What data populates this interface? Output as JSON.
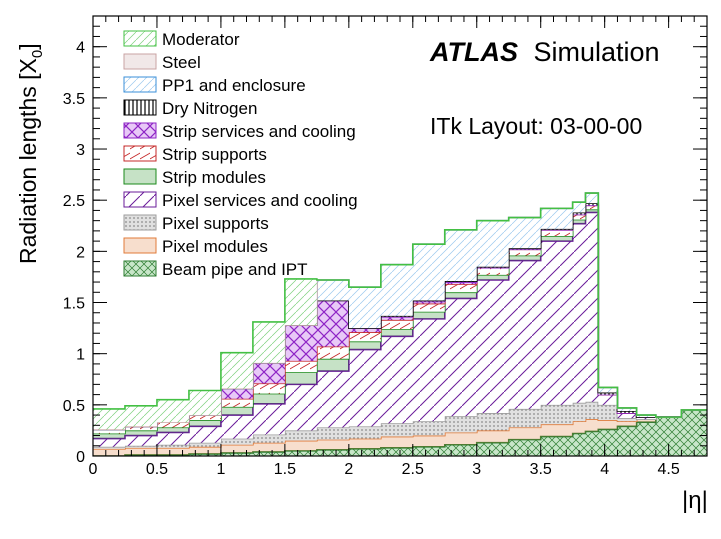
{
  "header": {
    "atlas_bold": "ATLAS",
    "atlas_rest": "Simulation",
    "layout_label": "ITk Layout: 03-00-00"
  },
  "chart_data": {
    "type": "area",
    "xlabel": "|η|",
    "ylabel": "Radiation lengths [X0]",
    "ylabel_main": "Radiation lengths [X",
    "ylabel_sub": "0",
    "ylabel_close": "]",
    "xlim": [
      0,
      4.8
    ],
    "ylim": [
      0,
      4.3
    ],
    "grid": false,
    "stacked": true,
    "legend_position": "top-left",
    "x_ticks": [
      0,
      0.5,
      1,
      1.5,
      2,
      2.5,
      3,
      3.5,
      4,
      4.5
    ],
    "x_tick_labels": [
      "0",
      "0.5",
      "1",
      "1.5",
      "2",
      "2.5",
      "3",
      "3.5",
      "4",
      "4.5"
    ],
    "y_ticks": [
      0,
      0.5,
      1,
      1.5,
      2,
      2.5,
      3,
      3.5,
      4
    ],
    "y_tick_labels": [
      "0",
      "0.5",
      "1",
      "1.5",
      "2",
      "2.5",
      "3",
      "3.5",
      "4"
    ],
    "x": [
      0,
      0.25,
      0.5,
      0.75,
      1.0,
      1.25,
      1.5,
      1.75,
      2.0,
      2.25,
      2.5,
      2.75,
      3.0,
      3.25,
      3.5,
      3.75,
      3.85,
      3.95,
      4.1,
      4.25,
      4.4,
      4.6,
      4.8
    ],
    "series": [
      {
        "name": "Beam pipe and IPT",
        "color": "#2e7d32",
        "pattern": "cross",
        "values": [
          0.0,
          0.01,
          0.01,
          0.02,
          0.03,
          0.04,
          0.05,
          0.06,
          0.07,
          0.08,
          0.09,
          0.11,
          0.13,
          0.16,
          0.19,
          0.22,
          0.24,
          0.26,
          0.29,
          0.33,
          0.38,
          0.45,
          0.53
        ]
      },
      {
        "name": "Pixel modules",
        "color": "#e07b39",
        "pattern": "solid-light",
        "values": [
          0.07,
          0.07,
          0.07,
          0.07,
          0.08,
          0.09,
          0.1,
          0.1,
          0.1,
          0.11,
          0.11,
          0.12,
          0.12,
          0.12,
          0.12,
          0.12,
          0.12,
          0.09,
          0.05,
          0.03,
          0.0,
          0.0,
          0.0
        ]
      },
      {
        "name": "Pixel supports",
        "color": "#9e9e9e",
        "pattern": "dots",
        "values": [
          0.02,
          0.02,
          0.03,
          0.04,
          0.06,
          0.08,
          0.1,
          0.12,
          0.12,
          0.13,
          0.14,
          0.16,
          0.17,
          0.18,
          0.19,
          0.18,
          0.17,
          0.15,
          0.03,
          0.0,
          0.0,
          0.0,
          0.0
        ]
      },
      {
        "name": "Pixel services and cooling",
        "color": "#6a1b9a",
        "pattern": "diag",
        "values": [
          0.08,
          0.1,
          0.12,
          0.16,
          0.23,
          0.3,
          0.45,
          0.55,
          0.75,
          0.85,
          1.0,
          1.15,
          1.3,
          1.45,
          1.6,
          1.75,
          1.85,
          0.1,
          0.05,
          0.02,
          0.0,
          0.0,
          0.0
        ]
      },
      {
        "name": "Strip modules",
        "color": "#1b8a1b",
        "pattern": "solid-light",
        "values": [
          0.05,
          0.05,
          0.05,
          0.06,
          0.08,
          0.1,
          0.12,
          0.12,
          0.08,
          0.07,
          0.07,
          0.06,
          0.05,
          0.05,
          0.05,
          0.04,
          0.03,
          0.0,
          0.0,
          0.0,
          0.0,
          0.0,
          0.0
        ]
      },
      {
        "name": "Strip supports",
        "color": "#c62828",
        "pattern": "diag-rev",
        "values": [
          0.04,
          0.04,
          0.05,
          0.05,
          0.08,
          0.1,
          0.11,
          0.12,
          0.09,
          0.09,
          0.08,
          0.08,
          0.07,
          0.06,
          0.06,
          0.05,
          0.04,
          0.0,
          0.0,
          0.0,
          0.0,
          0.0,
          0.0
        ]
      },
      {
        "name": "Strip services and cooling",
        "color": "#8e24c6",
        "pattern": "crosshatch",
        "values": [
          0.0,
          0.0,
          0.0,
          0.0,
          0.1,
          0.2,
          0.35,
          0.45,
          0.04,
          0.03,
          0.02,
          0.02,
          0.0,
          0.0,
          0.0,
          0.0,
          0.0,
          0.0,
          0.0,
          0.0,
          0.0,
          0.0,
          0.0
        ]
      },
      {
        "name": "Dry Nitrogen",
        "color": "#000000",
        "pattern": "vertical",
        "values": [
          0.0,
          0.0,
          0.0,
          0.0,
          0.0,
          0.0,
          0.0,
          0.0,
          0.0,
          0.01,
          0.01,
          0.01,
          0.01,
          0.01,
          0.01,
          0.02,
          0.02,
          0.02,
          0.02,
          0.0,
          0.0,
          0.0,
          0.0
        ]
      },
      {
        "name": "PP1 and enclosure",
        "color": "#3a8fd8",
        "pattern": "diag-light",
        "values": [
          0.0,
          0.0,
          0.0,
          0.0,
          0.0,
          0.0,
          0.0,
          0.2,
          0.4,
          0.5,
          0.55,
          0.5,
          0.45,
          0.3,
          0.2,
          0.1,
          0.1,
          0.05,
          0.03,
          0.02,
          0.0,
          0.0,
          0.0
        ]
      },
      {
        "name": "Steel",
        "color": "#c9a3a3",
        "pattern": "solid-light",
        "values": [
          0.0,
          0.0,
          0.0,
          0.0,
          0.0,
          0.0,
          0.0,
          0.0,
          0.0,
          0.0,
          0.0,
          0.0,
          0.0,
          0.0,
          0.0,
          0.0,
          0.0,
          0.0,
          0.0,
          0.0,
          0.0,
          0.0,
          0.0
        ]
      },
      {
        "name": "Moderator",
        "color": "#43c043",
        "pattern": "diag-green",
        "values": [
          0.2,
          0.2,
          0.22,
          0.24,
          0.35,
          0.4,
          0.45,
          0.0,
          0.0,
          0.0,
          0.0,
          0.0,
          0.0,
          0.0,
          0.0,
          0.0,
          0.0,
          0.0,
          0.0,
          0.0,
          0.0,
          0.0,
          0.0
        ]
      }
    ],
    "legend_order": [
      "Moderator",
      "Steel",
      "PP1 and enclosure",
      "Dry Nitrogen",
      "Strip services and cooling",
      "Strip supports",
      "Strip modules",
      "Pixel services and cooling",
      "Pixel supports",
      "Pixel modules",
      "Beam pipe and IPT"
    ]
  }
}
